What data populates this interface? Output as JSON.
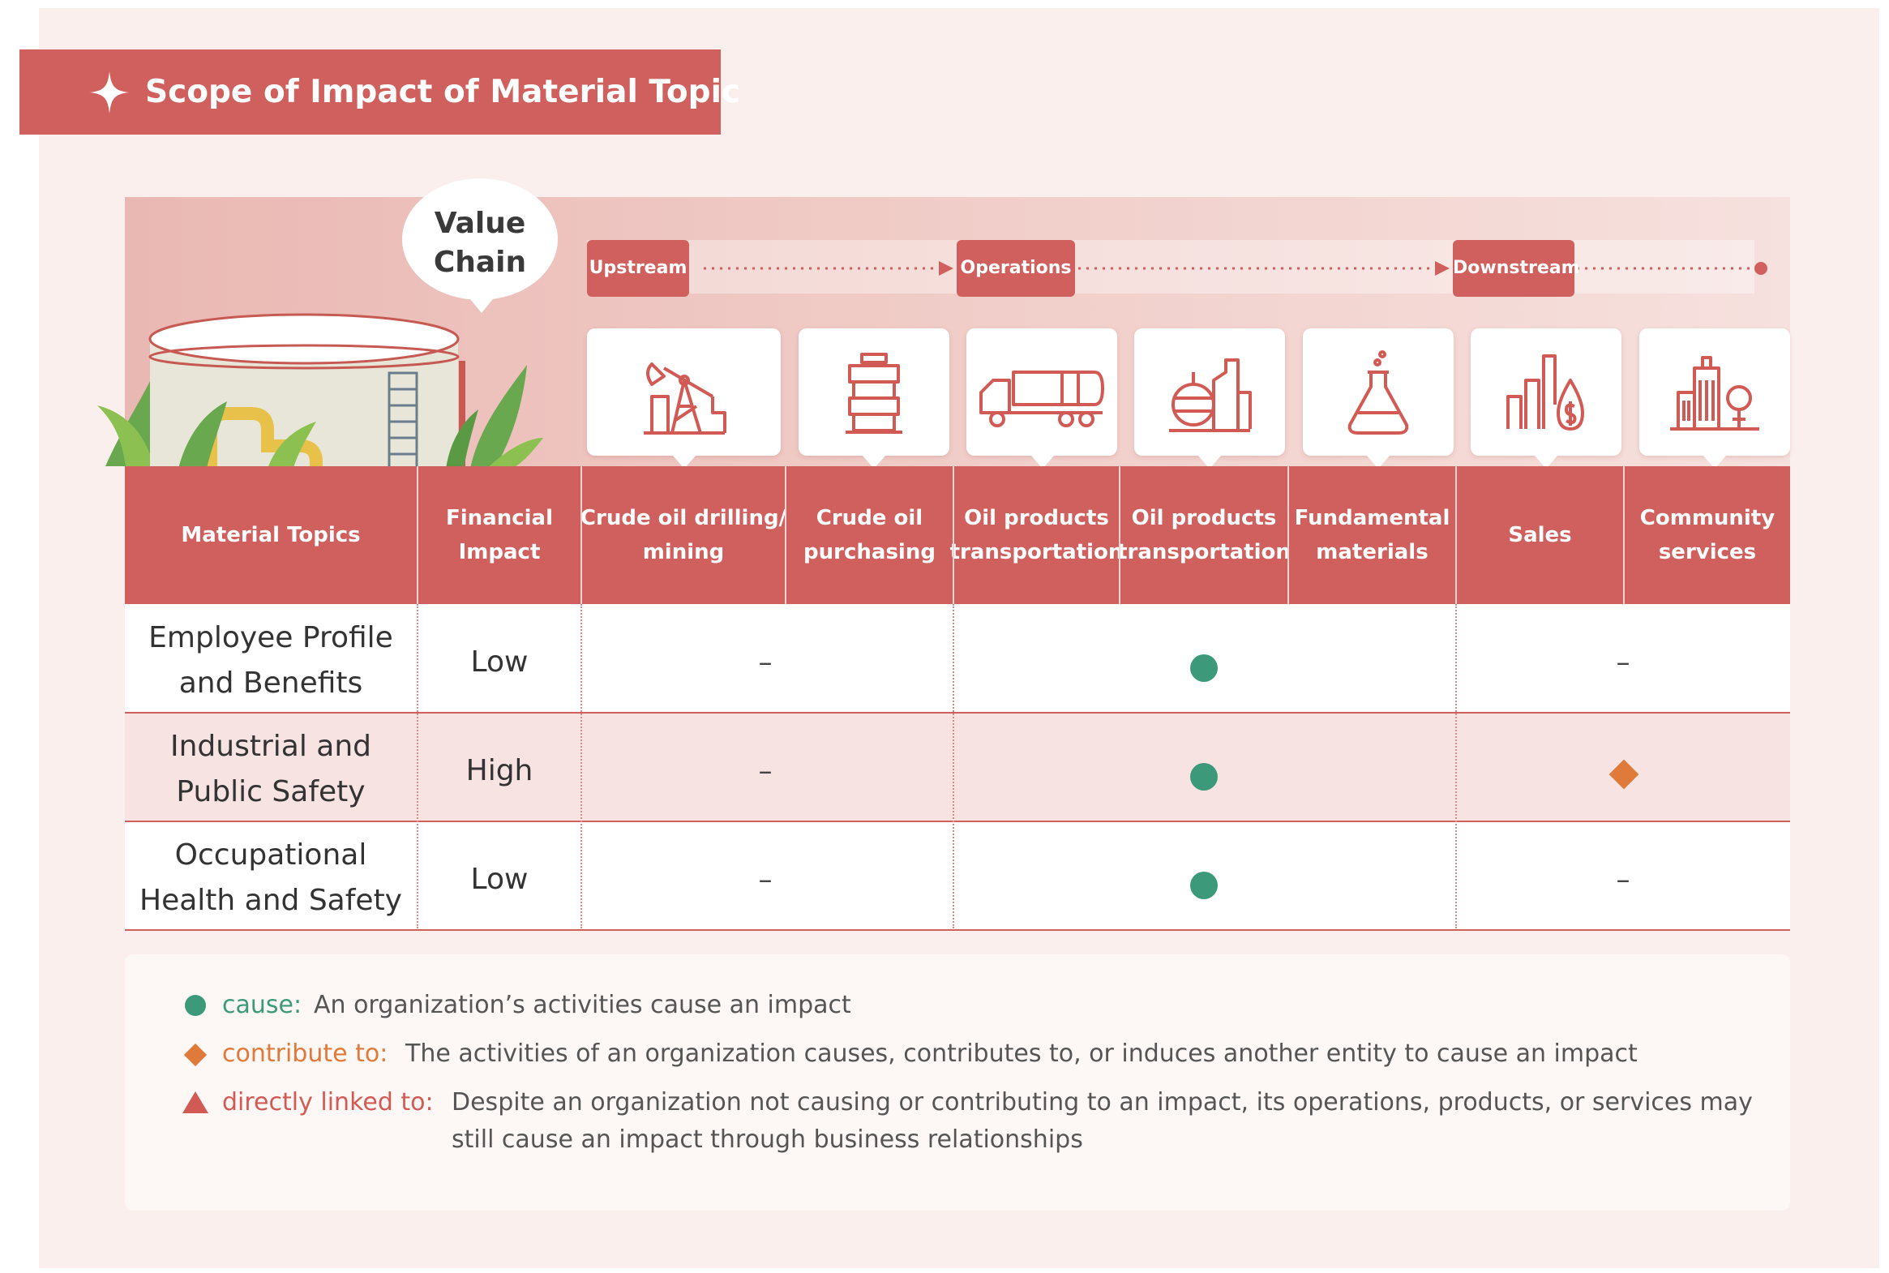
{
  "title": "Scope of Impact of Material Topic",
  "value_chain_label": [
    "Value",
    "Chain"
  ],
  "stages": {
    "upstream": "Upstream",
    "operations": "Operations",
    "downstream": "Downstream"
  },
  "icons": [
    {
      "name": "oil-pump-icon"
    },
    {
      "name": "oil-barrel-icon"
    },
    {
      "name": "tanker-truck-icon"
    },
    {
      "name": "refinery-icon"
    },
    {
      "name": "flask-icon"
    },
    {
      "name": "sales-chart-icon"
    },
    {
      "name": "city-buildings-icon"
    }
  ],
  "table": {
    "headers": {
      "topics": "Material Topics",
      "financial": [
        "Financial",
        "Impact"
      ],
      "crude_drilling": [
        "Crude oil drilling/",
        "mining"
      ],
      "crude_purchasing": [
        "Crude oil",
        "purchasing"
      ],
      "oil_transport_up": [
        "Oil products",
        "transportation"
      ],
      "oil_transport_ops": [
        "Oil products",
        "transportation"
      ],
      "fundamental": [
        "Fundamental",
        "materials"
      ],
      "sales": "Sales",
      "community": [
        "Community",
        "services"
      ]
    },
    "rows": [
      {
        "topic": [
          "Employee Profile",
          "and Benefits"
        ],
        "financial": "Low",
        "upstream": "–",
        "operations": "cause",
        "downstream": "–"
      },
      {
        "topic": [
          "Industrial and",
          "Public Safety"
        ],
        "financial": "High",
        "upstream": "–",
        "operations": "cause",
        "downstream": "contribute to"
      },
      {
        "topic": [
          "Occupational",
          "Health and Safety"
        ],
        "financial": "Low",
        "upstream": "–",
        "operations": "cause",
        "downstream": "–"
      }
    ]
  },
  "legend": [
    {
      "term": "cause:",
      "description": [
        "An organization’s activities cause an impact"
      ],
      "color": "#3c9a7a"
    },
    {
      "term": "contribute to:",
      "description": [
        "The activities of an organization causes, contributes to, or induces another entity to cause an impact"
      ],
      "color": "#e07a3a"
    },
    {
      "term": "directly linked to:",
      "description": [
        "Despite an organization not causing or contributing to an impact, its operations, products, or services may",
        "still cause an impact through business relationships"
      ],
      "color": "#d25a55"
    }
  ],
  "colors": {
    "primary": "#d0605e",
    "background": "#fbefed",
    "cause": "#3c9a7a",
    "contribute": "#e07a3a"
  }
}
